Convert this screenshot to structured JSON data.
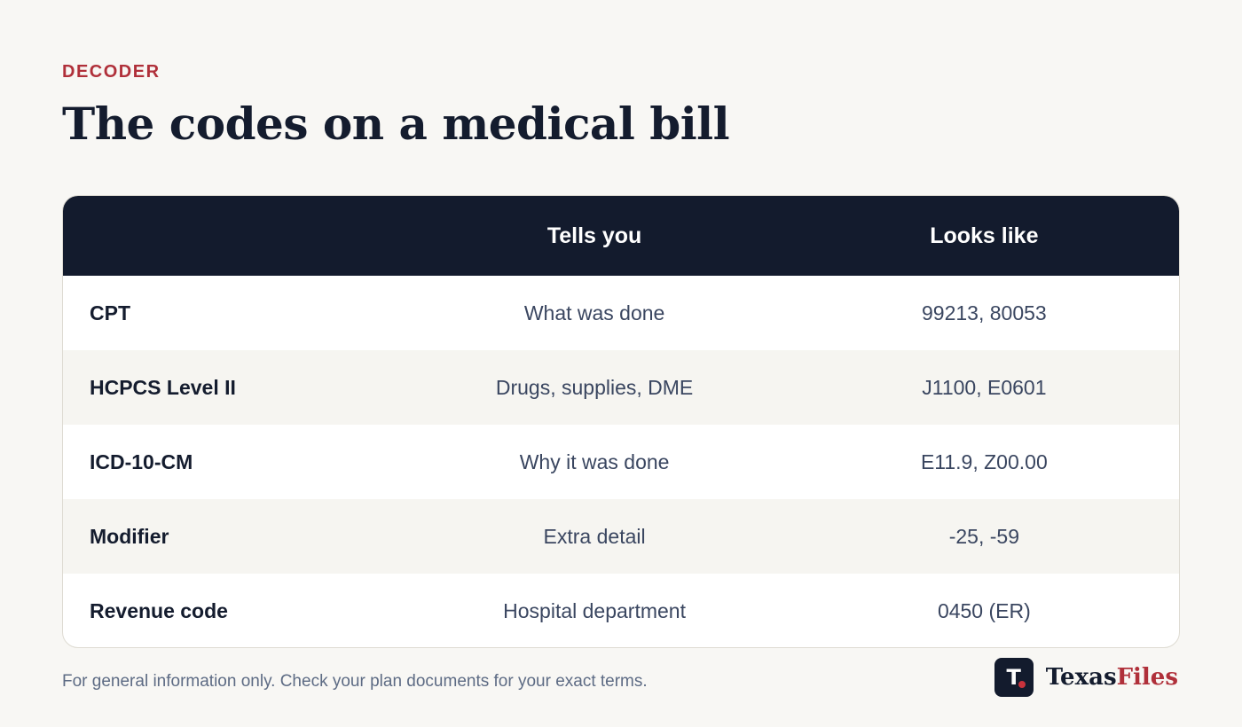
{
  "header": {
    "eyebrow": "DECODER",
    "title": "The codes on a medical bill"
  },
  "table": {
    "columns": [
      "",
      "Tells you",
      "Looks like"
    ],
    "rows": [
      {
        "name": "CPT",
        "tells_you": "What was done",
        "looks_like": "99213, 80053"
      },
      {
        "name": "HCPCS Level II",
        "tells_you": "Drugs, supplies, DME",
        "looks_like": "J1100, E0601"
      },
      {
        "name": "ICD-10-CM",
        "tells_you": "Why it was done",
        "looks_like": "E11.9, Z00.00"
      },
      {
        "name": "Modifier",
        "tells_you": "Extra detail",
        "looks_like": "-25, -59"
      },
      {
        "name": "Revenue code",
        "tells_you": "Hospital department",
        "looks_like": "0450 (ER)"
      }
    ]
  },
  "footer": {
    "note": "For general information only. Check your plan documents for your exact terms.",
    "brand_mark": "T",
    "brand_name_primary": "Texas",
    "brand_name_accent": "Files"
  },
  "colors": {
    "accent": "#b0303a",
    "header_bg": "#131b2d",
    "page_bg": "#f8f7f4"
  }
}
